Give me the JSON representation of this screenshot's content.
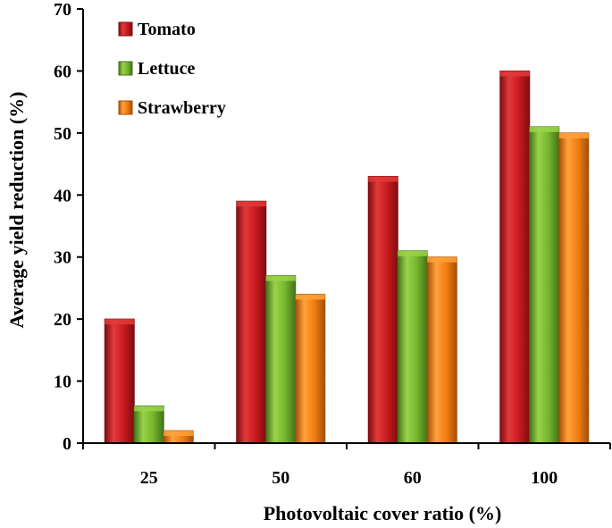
{
  "chart_data": {
    "type": "bar",
    "title": "",
    "xlabel": "Photovoltaic cover ratio (%)",
    "ylabel": "Average yield reduction (%)",
    "categories": [
      "25",
      "50",
      "60",
      "100"
    ],
    "series": [
      {
        "name": "Tomato",
        "values": [
          20,
          39,
          43,
          60
        ],
        "color": "#c8191f",
        "color_light": "#e23a3a",
        "color_dark": "#7d0d10"
      },
      {
        "name": "Lettuce",
        "values": [
          6,
          27,
          31,
          51
        ],
        "color": "#74b52c",
        "color_light": "#9ad34a",
        "color_dark": "#43721a"
      },
      {
        "name": "Strawberry",
        "values": [
          2,
          24,
          30,
          50
        ],
        "color": "#f07c10",
        "color_light": "#ffa23a",
        "color_dark": "#a34f08"
      }
    ],
    "ylim": [
      0,
      70
    ],
    "yticks": [
      "0",
      "10",
      "20",
      "30",
      "40",
      "50",
      "60",
      "70"
    ],
    "grid": false,
    "legend_position": "top-left"
  }
}
